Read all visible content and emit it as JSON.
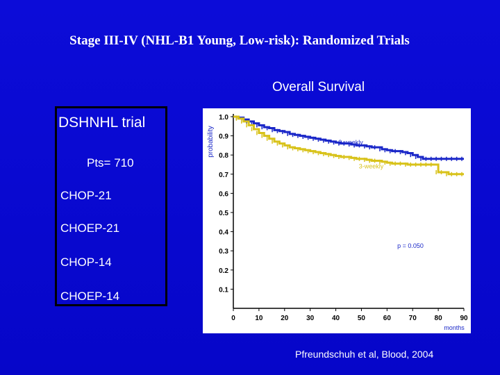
{
  "slide": {
    "title": "Stage III-IV (NHL-B1 Young, Low-risk): Randomized Trials",
    "subtitle": "Overall Survival",
    "citation": "Pfreundschuh et al, Blood, 2004"
  },
  "trial_box": {
    "name": "DSHNHL trial",
    "patients": "Pts= 710",
    "regimens": [
      "CHOP-21",
      "CHOEP-21",
      "CHOP-14",
      "CHOEP-14"
    ]
  },
  "colors": {
    "background": "#0808cf",
    "text": "#ffffff",
    "series_2weekly": "#1a27c8",
    "series_3weekly": "#d8c21a"
  },
  "chart_data": {
    "type": "line",
    "step": true,
    "title": "",
    "xlabel": "months",
    "ylabel": "probability",
    "xlim": [
      0,
      90
    ],
    "ylim": [
      0,
      1.0
    ],
    "x_ticks": [
      0,
      10,
      20,
      30,
      40,
      50,
      60,
      70,
      80,
      90
    ],
    "y_ticks": [
      0.1,
      0.2,
      0.3,
      0.4,
      0.5,
      0.6,
      0.7,
      0.8,
      0.9,
      1.0
    ],
    "y_tick_labels": [
      "0.1",
      "0.2",
      "0.3",
      "0.4",
      "0.5",
      "0.6",
      "0.7",
      "0.8",
      "0.9",
      "1.0"
    ],
    "grid": false,
    "annotations": [
      {
        "text": "p = 0.050",
        "x": 64,
        "y": 0.315
      }
    ],
    "series": [
      {
        "name": "2-weekly",
        "color": "#1a27c8",
        "label_pos": {
          "x": 41,
          "y": 0.855
        },
        "x": [
          0,
          2,
          4,
          6,
          8,
          10,
          12,
          14,
          16,
          18,
          20,
          22,
          24,
          26,
          28,
          30,
          32,
          34,
          36,
          38,
          40,
          42,
          44,
          46,
          48,
          50,
          52,
          54,
          56,
          58,
          60,
          62,
          64,
          66,
          68,
          70,
          72,
          74,
          76,
          78,
          80,
          82,
          84,
          86,
          88,
          90
        ],
        "y": [
          1.0,
          0.995,
          0.985,
          0.975,
          0.965,
          0.955,
          0.945,
          0.94,
          0.93,
          0.925,
          0.92,
          0.91,
          0.905,
          0.9,
          0.895,
          0.89,
          0.885,
          0.88,
          0.875,
          0.87,
          0.865,
          0.86,
          0.86,
          0.855,
          0.85,
          0.85,
          0.845,
          0.84,
          0.84,
          0.83,
          0.825,
          0.82,
          0.82,
          0.815,
          0.81,
          0.8,
          0.79,
          0.78,
          0.78,
          0.78,
          0.78,
          0.78,
          0.78,
          0.78,
          0.78,
          0.78
        ]
      },
      {
        "name": "3-weekly",
        "color": "#d8c21a",
        "label_pos": {
          "x": 49,
          "y": 0.73
        },
        "x": [
          0,
          2,
          4,
          6,
          8,
          10,
          12,
          14,
          16,
          18,
          20,
          22,
          24,
          26,
          28,
          30,
          32,
          34,
          36,
          38,
          40,
          42,
          44,
          46,
          48,
          50,
          52,
          54,
          56,
          58,
          60,
          62,
          64,
          66,
          68,
          70,
          72,
          74,
          76,
          78,
          80,
          82,
          84,
          86,
          88,
          90
        ],
        "y": [
          1.0,
          0.99,
          0.975,
          0.955,
          0.935,
          0.915,
          0.9,
          0.885,
          0.87,
          0.86,
          0.85,
          0.84,
          0.835,
          0.83,
          0.825,
          0.82,
          0.815,
          0.81,
          0.805,
          0.8,
          0.795,
          0.79,
          0.79,
          0.785,
          0.78,
          0.78,
          0.775,
          0.77,
          0.77,
          0.765,
          0.76,
          0.755,
          0.755,
          0.755,
          0.75,
          0.75,
          0.75,
          0.75,
          0.75,
          0.75,
          0.71,
          0.71,
          0.7,
          0.7,
          0.7,
          0.7
        ]
      }
    ]
  }
}
